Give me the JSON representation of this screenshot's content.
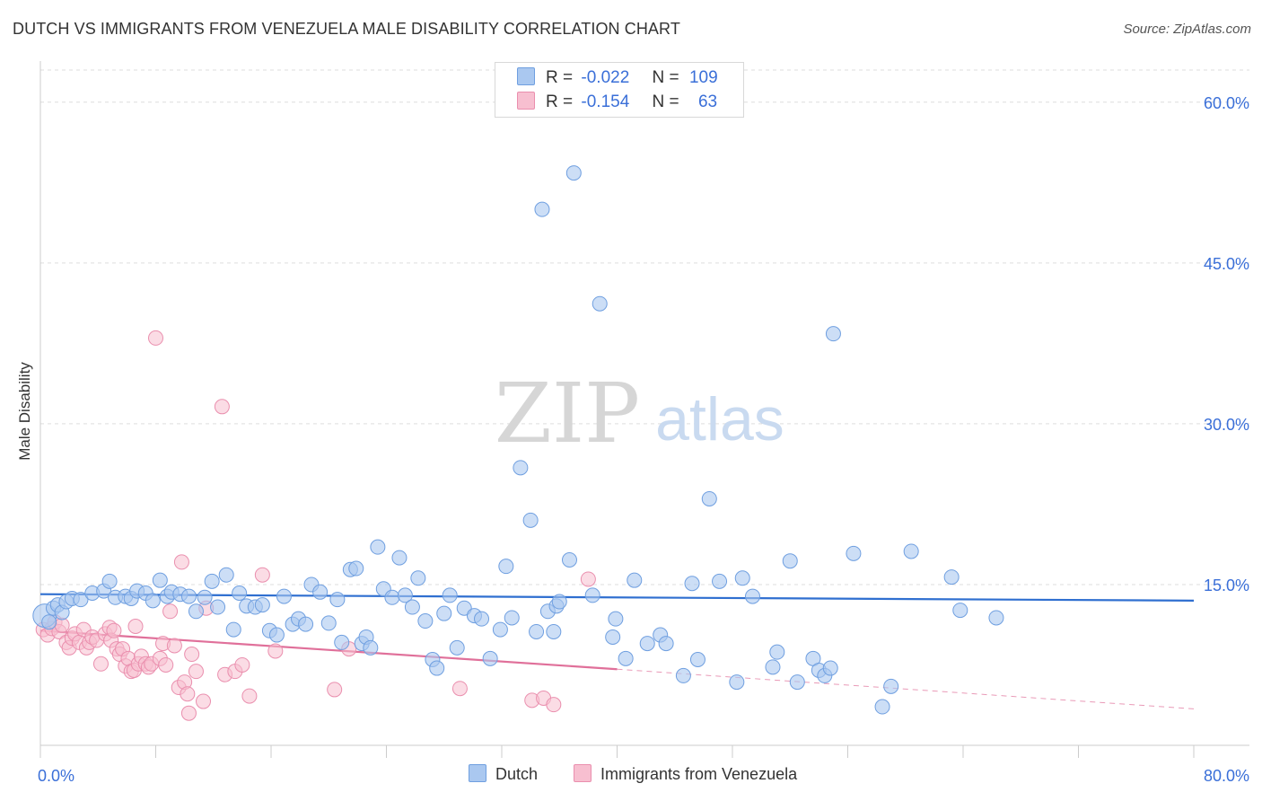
{
  "header": {
    "title": "DUTCH VS IMMIGRANTS FROM VENEZUELA MALE DISABILITY CORRELATION CHART",
    "source": "Source: ZipAtlas.com"
  },
  "legend": {
    "rows": [
      {
        "r_label": "R =",
        "r_value": "-0.022",
        "n_label": "N =",
        "n_value": "109"
      },
      {
        "r_label": "R =",
        "r_value": "-0.154",
        "n_label": "N =",
        "n_value": "63"
      }
    ],
    "bottom": [
      "Dutch",
      "Immigrants from Venezuela"
    ]
  },
  "watermark": {
    "zip": "ZIP",
    "atlas": "atlas"
  },
  "colors": {
    "dutch_fill": "#aac8f0",
    "dutch_stroke": "#6f9fe0",
    "dutch_line": "#2f6fd0",
    "ven_fill": "#f7bfd0",
    "ven_stroke": "#ea8fae",
    "ven_line": "#e0709a",
    "tick_text": "#3a6fd8",
    "grid": "#dddddd"
  },
  "chart_data": {
    "type": "scatter",
    "title": "DUTCH VS IMMIGRANTS FROM VENEZUELA MALE DISABILITY CORRELATION CHART",
    "xlabel": "",
    "ylabel": "Male Disability",
    "xlim": [
      0,
      80
    ],
    "ylim": [
      0,
      63
    ],
    "x_tick_labels": [
      "0.0%",
      "80.0%"
    ],
    "y_ticks": [
      15,
      30,
      45,
      60
    ],
    "y_tick_labels": [
      "15.0%",
      "30.0%",
      "45.0%",
      "60.0%"
    ],
    "grid": true,
    "series": [
      {
        "name": "Dutch",
        "r": -0.022,
        "n": 109,
        "trend": {
          "x0": 0,
          "y0": 14.1,
          "x1": 80,
          "y1": 13.5
        },
        "points": [
          [
            0.3,
            12.1
          ],
          [
            0.6,
            11.5
          ],
          [
            0.9,
            12.8
          ],
          [
            1.2,
            13.1
          ],
          [
            1.5,
            12.4
          ],
          [
            1.8,
            13.4
          ],
          [
            2.2,
            13.7
          ],
          [
            2.8,
            13.6
          ],
          [
            3.6,
            14.2
          ],
          [
            4.4,
            14.4
          ],
          [
            4.8,
            15.3
          ],
          [
            5.2,
            13.8
          ],
          [
            5.9,
            13.9
          ],
          [
            6.3,
            13.7
          ],
          [
            6.7,
            14.4
          ],
          [
            7.3,
            14.2
          ],
          [
            7.8,
            13.5
          ],
          [
            8.3,
            15.4
          ],
          [
            8.8,
            13.9
          ],
          [
            9.1,
            14.3
          ],
          [
            9.7,
            14.1
          ],
          [
            10.3,
            13.9
          ],
          [
            10.8,
            12.5
          ],
          [
            11.4,
            13.8
          ],
          [
            11.9,
            15.3
          ],
          [
            12.3,
            12.9
          ],
          [
            12.9,
            15.9
          ],
          [
            13.4,
            10.8
          ],
          [
            13.8,
            14.2
          ],
          [
            14.3,
            13.0
          ],
          [
            14.9,
            12.9
          ],
          [
            15.4,
            13.1
          ],
          [
            15.9,
            10.7
          ],
          [
            16.4,
            10.3
          ],
          [
            16.9,
            13.9
          ],
          [
            17.5,
            11.3
          ],
          [
            17.9,
            11.8
          ],
          [
            18.4,
            11.3
          ],
          [
            18.8,
            15.0
          ],
          [
            19.4,
            14.3
          ],
          [
            20.0,
            11.4
          ],
          [
            20.6,
            13.6
          ],
          [
            20.9,
            9.6
          ],
          [
            21.5,
            16.4
          ],
          [
            21.9,
            16.5
          ],
          [
            22.3,
            9.5
          ],
          [
            22.6,
            10.1
          ],
          [
            22.9,
            9.1
          ],
          [
            23.4,
            18.5
          ],
          [
            23.8,
            14.6
          ],
          [
            24.4,
            13.8
          ],
          [
            24.9,
            17.5
          ],
          [
            25.3,
            14.0
          ],
          [
            25.8,
            12.9
          ],
          [
            26.2,
            15.6
          ],
          [
            26.7,
            11.6
          ],
          [
            27.2,
            8.0
          ],
          [
            27.5,
            7.2
          ],
          [
            28.0,
            12.3
          ],
          [
            28.4,
            14.0
          ],
          [
            28.9,
            9.1
          ],
          [
            29.4,
            12.8
          ],
          [
            30.1,
            12.1
          ],
          [
            30.6,
            11.8
          ],
          [
            31.2,
            8.1
          ],
          [
            31.9,
            10.8
          ],
          [
            32.3,
            16.7
          ],
          [
            32.7,
            11.9
          ],
          [
            33.3,
            25.9
          ],
          [
            34.0,
            21.0
          ],
          [
            34.4,
            10.6
          ],
          [
            35.2,
            12.5
          ],
          [
            35.6,
            10.6
          ],
          [
            35.8,
            13.0
          ],
          [
            36.0,
            13.4
          ],
          [
            36.7,
            17.3
          ],
          [
            37.0,
            53.4
          ],
          [
            38.3,
            14.0
          ],
          [
            38.8,
            41.2
          ],
          [
            39.7,
            10.1
          ],
          [
            39.9,
            11.8
          ],
          [
            40.6,
            8.1
          ],
          [
            41.2,
            15.4
          ],
          [
            42.1,
            9.5
          ],
          [
            43.0,
            10.3
          ],
          [
            43.4,
            9.5
          ],
          [
            44.6,
            6.5
          ],
          [
            45.2,
            15.1
          ],
          [
            45.6,
            8.0
          ],
          [
            46.4,
            23.0
          ],
          [
            47.1,
            15.3
          ],
          [
            48.3,
            5.9
          ],
          [
            48.7,
            15.6
          ],
          [
            49.4,
            13.9
          ],
          [
            50.8,
            7.3
          ],
          [
            51.1,
            8.7
          ],
          [
            52.0,
            17.2
          ],
          [
            52.5,
            5.9
          ],
          [
            53.6,
            8.1
          ],
          [
            54.0,
            7.0
          ],
          [
            54.4,
            6.5
          ],
          [
            54.8,
            7.2
          ],
          [
            55.0,
            38.4
          ],
          [
            56.4,
            17.9
          ],
          [
            58.4,
            3.6
          ],
          [
            59.0,
            5.5
          ],
          [
            60.4,
            18.1
          ],
          [
            63.2,
            15.7
          ],
          [
            63.8,
            12.6
          ],
          [
            66.3,
            11.9
          ],
          [
            34.8,
            50.0
          ]
        ]
      },
      {
        "name": "Immigrants from Venezuela",
        "r": -0.154,
        "n": 63,
        "trend": {
          "x0": 0,
          "y0": 10.7,
          "x1": 40,
          "y1": 7.1
        },
        "trend_extension": {
          "x0": 40,
          "y0": 7.1,
          "x1": 80,
          "y1": 3.4
        },
        "points": [
          [
            0.2,
            10.8
          ],
          [
            0.5,
            10.3
          ],
          [
            0.8,
            10.9
          ],
          [
            1.0,
            11.5
          ],
          [
            1.3,
            10.6
          ],
          [
            1.5,
            11.2
          ],
          [
            1.8,
            9.6
          ],
          [
            2.0,
            9.1
          ],
          [
            2.2,
            10.0
          ],
          [
            2.4,
            10.4
          ],
          [
            2.7,
            9.6
          ],
          [
            3.0,
            10.8
          ],
          [
            3.2,
            9.1
          ],
          [
            3.4,
            9.6
          ],
          [
            3.6,
            10.1
          ],
          [
            3.9,
            9.8
          ],
          [
            4.2,
            7.6
          ],
          [
            4.5,
            10.4
          ],
          [
            4.8,
            11.0
          ],
          [
            4.9,
            9.8
          ],
          [
            5.1,
            10.7
          ],
          [
            5.3,
            9.0
          ],
          [
            5.5,
            8.5
          ],
          [
            5.7,
            9.0
          ],
          [
            5.9,
            7.4
          ],
          [
            6.1,
            8.1
          ],
          [
            6.3,
            6.9
          ],
          [
            6.5,
            7.0
          ],
          [
            6.6,
            11.1
          ],
          [
            6.8,
            7.6
          ],
          [
            7.0,
            8.3
          ],
          [
            7.3,
            7.6
          ],
          [
            7.5,
            7.3
          ],
          [
            7.7,
            7.6
          ],
          [
            8.0,
            38.0
          ],
          [
            8.3,
            8.1
          ],
          [
            8.5,
            9.5
          ],
          [
            8.7,
            7.5
          ],
          [
            9.0,
            12.5
          ],
          [
            9.3,
            9.3
          ],
          [
            9.6,
            5.4
          ],
          [
            9.8,
            17.1
          ],
          [
            10.0,
            5.9
          ],
          [
            10.2,
            4.8
          ],
          [
            10.5,
            8.5
          ],
          [
            10.8,
            6.9
          ],
          [
            11.3,
            4.1
          ],
          [
            11.5,
            12.8
          ],
          [
            12.6,
            31.6
          ],
          [
            12.8,
            6.6
          ],
          [
            13.5,
            6.9
          ],
          [
            14.0,
            7.5
          ],
          [
            14.5,
            4.6
          ],
          [
            15.4,
            15.9
          ],
          [
            16.3,
            8.8
          ],
          [
            20.4,
            5.2
          ],
          [
            21.4,
            9.0
          ],
          [
            29.1,
            5.3
          ],
          [
            34.1,
            4.2
          ],
          [
            34.9,
            4.4
          ],
          [
            35.6,
            3.8
          ],
          [
            38.0,
            15.5
          ],
          [
            10.3,
            3.0
          ]
        ]
      }
    ]
  }
}
